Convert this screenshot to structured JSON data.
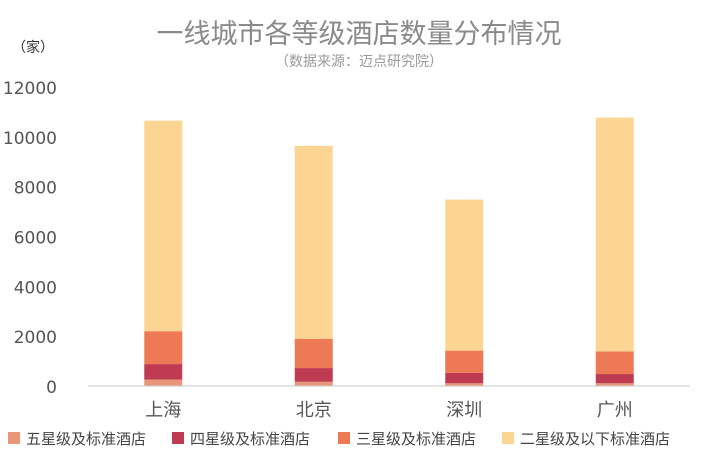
{
  "chart_data": {
    "type": "bar",
    "stacked": true,
    "title": "一线城市各等级酒店数量分布情况",
    "subtitle": "（数据来源：迈点研究院）",
    "ylabel": "（家）",
    "xlabel": "",
    "ylim": [
      0,
      12000
    ],
    "yticks": [
      0,
      2000,
      4000,
      6000,
      8000,
      10000,
      12000
    ],
    "grid": false,
    "legend_position": "bottom",
    "categories": [
      "上海",
      "北京",
      "深圳",
      "广州"
    ],
    "series": [
      {
        "name": "五星级及标准酒店",
        "color": "#e8957a",
        "values": [
          260,
          170,
          110,
          110
        ]
      },
      {
        "name": "四星级及标准酒店",
        "color": "#bf3b52",
        "values": [
          620,
          550,
          420,
          370
        ]
      },
      {
        "name": "三星级及标准酒店",
        "color": "#ee7a55",
        "values": [
          1320,
          1170,
          890,
          910
        ]
      },
      {
        "name": "二星级及以下标准酒店",
        "color": "#fdd593",
        "values": [
          8450,
          7750,
          6060,
          9380
        ]
      }
    ]
  }
}
